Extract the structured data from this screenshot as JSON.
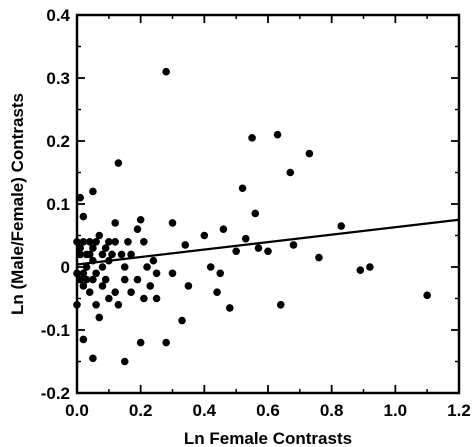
{
  "chart_data": {
    "type": "scatter",
    "title": "",
    "xlabel": "Ln Female Contrasts",
    "ylabel": "Ln (Male/Female) Contrasts",
    "xlim": [
      0,
      1.2
    ],
    "ylim": [
      -0.2,
      0.4
    ],
    "x_ticks": [
      "0.0",
      "0.2",
      "0.4",
      "0.6",
      "0.8",
      "1.0",
      "1.2"
    ],
    "y_ticks": [
      "-0.2",
      "-0.1",
      "0",
      "0.1",
      "0.2",
      "0.3",
      "0.4"
    ],
    "grid": false,
    "regression_line": {
      "x": [
        0,
        1.2
      ],
      "y": [
        0.004,
        0.075
      ]
    },
    "points": [
      {
        "x": 0.01,
        "y": 0.11
      },
      {
        "x": 0.05,
        "y": 0.12
      },
      {
        "x": 0.02,
        "y": 0.08
      },
      {
        "x": 0.13,
        "y": 0.165
      },
      {
        "x": 0.28,
        "y": 0.31
      },
      {
        "x": 0.0,
        "y": 0.04
      },
      {
        "x": 0.01,
        "y": 0.03
      },
      {
        "x": 0.01,
        "y": 0.02
      },
      {
        "x": 0.02,
        "y": 0.04
      },
      {
        "x": 0.03,
        "y": 0.02
      },
      {
        "x": 0.03,
        "y": 0.0
      },
      {
        "x": 0.04,
        "y": 0.04
      },
      {
        "x": 0.04,
        "y": 0.02
      },
      {
        "x": 0.05,
        "y": 0.03
      },
      {
        "x": 0.05,
        "y": 0.01
      },
      {
        "x": 0.06,
        "y": 0.04
      },
      {
        "x": 0.06,
        "y": -0.01
      },
      {
        "x": 0.07,
        "y": 0.05
      },
      {
        "x": 0.08,
        "y": 0.02
      },
      {
        "x": 0.08,
        "y": 0.0
      },
      {
        "x": 0.09,
        "y": 0.03
      },
      {
        "x": 0.1,
        "y": 0.04
      },
      {
        "x": 0.1,
        "y": 0.01
      },
      {
        "x": 0.11,
        "y": 0.02
      },
      {
        "x": 0.12,
        "y": 0.04
      },
      {
        "x": 0.12,
        "y": 0.07
      },
      {
        "x": 0.14,
        "y": 0.02
      },
      {
        "x": 0.15,
        "y": 0.0
      },
      {
        "x": 0.16,
        "y": 0.04
      },
      {
        "x": 0.17,
        "y": 0.02
      },
      {
        "x": 0.19,
        "y": 0.06
      },
      {
        "x": 0.2,
        "y": 0.075
      },
      {
        "x": 0.21,
        "y": 0.04
      },
      {
        "x": 0.22,
        "y": 0.0
      },
      {
        "x": 0.24,
        "y": 0.01
      },
      {
        "x": 0.25,
        "y": -0.01
      },
      {
        "x": 0.0,
        "y": -0.01
      },
      {
        "x": 0.01,
        "y": -0.02
      },
      {
        "x": 0.02,
        "y": -0.03
      },
      {
        "x": 0.02,
        "y": -0.01
      },
      {
        "x": 0.03,
        "y": -0.02
      },
      {
        "x": 0.04,
        "y": -0.04
      },
      {
        "x": 0.05,
        "y": -0.02
      },
      {
        "x": 0.06,
        "y": -0.06
      },
      {
        "x": 0.07,
        "y": -0.08
      },
      {
        "x": 0.08,
        "y": -0.03
      },
      {
        "x": 0.09,
        "y": -0.02
      },
      {
        "x": 0.1,
        "y": -0.05
      },
      {
        "x": 0.12,
        "y": -0.04
      },
      {
        "x": 0.13,
        "y": -0.06
      },
      {
        "x": 0.15,
        "y": -0.02
      },
      {
        "x": 0.17,
        "y": -0.04
      },
      {
        "x": 0.19,
        "y": -0.02
      },
      {
        "x": 0.21,
        "y": -0.05
      },
      {
        "x": 0.23,
        "y": -0.03
      },
      {
        "x": 0.25,
        "y": -0.05
      },
      {
        "x": 0.0,
        "y": -0.06
      },
      {
        "x": 0.02,
        "y": -0.115
      },
      {
        "x": 0.05,
        "y": -0.145
      },
      {
        "x": 0.15,
        "y": -0.15
      },
      {
        "x": 0.2,
        "y": -0.12
      },
      {
        "x": 0.28,
        "y": -0.12
      },
      {
        "x": 0.3,
        "y": 0.07
      },
      {
        "x": 0.34,
        "y": 0.035
      },
      {
        "x": 0.33,
        "y": -0.085
      },
      {
        "x": 0.3,
        "y": -0.01
      },
      {
        "x": 0.35,
        "y": -0.03
      },
      {
        "x": 0.4,
        "y": 0.05
      },
      {
        "x": 0.42,
        "y": 0.0
      },
      {
        "x": 0.44,
        "y": -0.04
      },
      {
        "x": 0.46,
        "y": 0.06
      },
      {
        "x": 0.48,
        "y": -0.065
      },
      {
        "x": 0.45,
        "y": -0.01
      },
      {
        "x": 0.5,
        "y": 0.025
      },
      {
        "x": 0.52,
        "y": 0.125
      },
      {
        "x": 0.53,
        "y": 0.045
      },
      {
        "x": 0.55,
        "y": 0.205
      },
      {
        "x": 0.56,
        "y": 0.085
      },
      {
        "x": 0.57,
        "y": 0.03
      },
      {
        "x": 0.6,
        "y": 0.025
      },
      {
        "x": 0.63,
        "y": 0.21
      },
      {
        "x": 0.67,
        "y": 0.15
      },
      {
        "x": 0.64,
        "y": -0.06
      },
      {
        "x": 0.68,
        "y": 0.035
      },
      {
        "x": 0.73,
        "y": 0.18
      },
      {
        "x": 0.76,
        "y": 0.015
      },
      {
        "x": 0.83,
        "y": 0.065
      },
      {
        "x": 0.89,
        "y": -0.005
      },
      {
        "x": 0.92,
        "y": 0.0
      },
      {
        "x": 1.1,
        "y": -0.045
      }
    ]
  }
}
